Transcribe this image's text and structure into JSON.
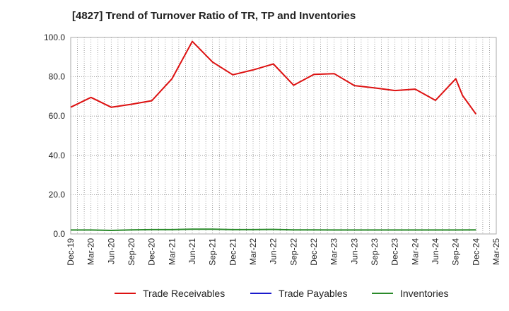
{
  "chart_data": {
    "type": "line",
    "title": "[4827]  Trend of Turnover Ratio of TR, TP and Inventories",
    "xlabel": "",
    "ylabel": "",
    "ylim": [
      0,
      100
    ],
    "yticks": [
      "0.0",
      "20.0",
      "40.0",
      "60.0",
      "80.0",
      "100.0"
    ],
    "xticks": [
      "Dec-19",
      "Mar-20",
      "Jun-20",
      "Sep-20",
      "Dec-20",
      "Mar-21",
      "Jun-21",
      "Sep-21",
      "Dec-21",
      "Mar-22",
      "Jun-22",
      "Sep-22",
      "Dec-22",
      "Mar-23",
      "Jun-23",
      "Sep-23",
      "Dec-23",
      "Mar-24",
      "Jun-24",
      "Sep-24",
      "Dec-24",
      "Mar-25"
    ],
    "grid": true,
    "legend_position": "bottom",
    "series": [
      {
        "name": "Trade Receivables",
        "color": "#dd1111",
        "points": [
          {
            "x": "Dec-19",
            "y": 64.5
          },
          {
            "x": "Mar-20",
            "y": 69.5
          },
          {
            "x": "Jun-20",
            "y": 64.5
          },
          {
            "x": "Sep-20",
            "y": 66.0
          },
          {
            "x": "Dec-20",
            "y": 67.8
          },
          {
            "x": "Mar-21",
            "y": 79.0
          },
          {
            "x": "Jun-21",
            "y": 98.0
          },
          {
            "x": "Sep-21",
            "y": 87.5
          },
          {
            "x": "Dec-21",
            "y": 81.0
          },
          {
            "x": "Mar-22",
            "y": 83.5
          },
          {
            "x": "Jun-22",
            "y": 86.5
          },
          {
            "x": "Sep-22",
            "y": 75.7
          },
          {
            "x": "Dec-22",
            "y": 81.2
          },
          {
            "x": "Mar-23",
            "y": 81.6
          },
          {
            "x": "Jun-23",
            "y": 75.5
          },
          {
            "x": "Sep-23",
            "y": 74.3
          },
          {
            "x": "Dec-23",
            "y": 73.0
          },
          {
            "x": "Mar-24",
            "y": 73.7
          },
          {
            "x": "Jun-24",
            "y": 68.0
          },
          {
            "x": "Sep-24",
            "y": 79.0
          },
          {
            "x": "Oct-24",
            "y": 70.5
          },
          {
            "x": "Dec-24",
            "y": 61.0
          }
        ]
      },
      {
        "name": "Trade Payables",
        "color": "#1a1acc",
        "points": []
      },
      {
        "name": "Inventories",
        "color": "#2a8a2a",
        "points": [
          {
            "x": "Dec-19",
            "y": 2.0
          },
          {
            "x": "Mar-20",
            "y": 2.0
          },
          {
            "x": "Jun-20",
            "y": 1.8
          },
          {
            "x": "Sep-20",
            "y": 2.1
          },
          {
            "x": "Dec-20",
            "y": 2.2
          },
          {
            "x": "Mar-21",
            "y": 2.2
          },
          {
            "x": "Jun-21",
            "y": 2.4
          },
          {
            "x": "Sep-21",
            "y": 2.4
          },
          {
            "x": "Dec-21",
            "y": 2.2
          },
          {
            "x": "Mar-22",
            "y": 2.2
          },
          {
            "x": "Jun-22",
            "y": 2.3
          },
          {
            "x": "Sep-22",
            "y": 2.1
          },
          {
            "x": "Dec-22",
            "y": 2.1
          },
          {
            "x": "Mar-23",
            "y": 2.0
          },
          {
            "x": "Jun-23",
            "y": 2.0
          },
          {
            "x": "Sep-23",
            "y": 2.0
          },
          {
            "x": "Dec-23",
            "y": 2.0
          },
          {
            "x": "Mar-24",
            "y": 2.0
          },
          {
            "x": "Jun-24",
            "y": 2.0
          },
          {
            "x": "Sep-24",
            "y": 2.0
          },
          {
            "x": "Dec-24",
            "y": 2.1
          }
        ]
      }
    ]
  }
}
